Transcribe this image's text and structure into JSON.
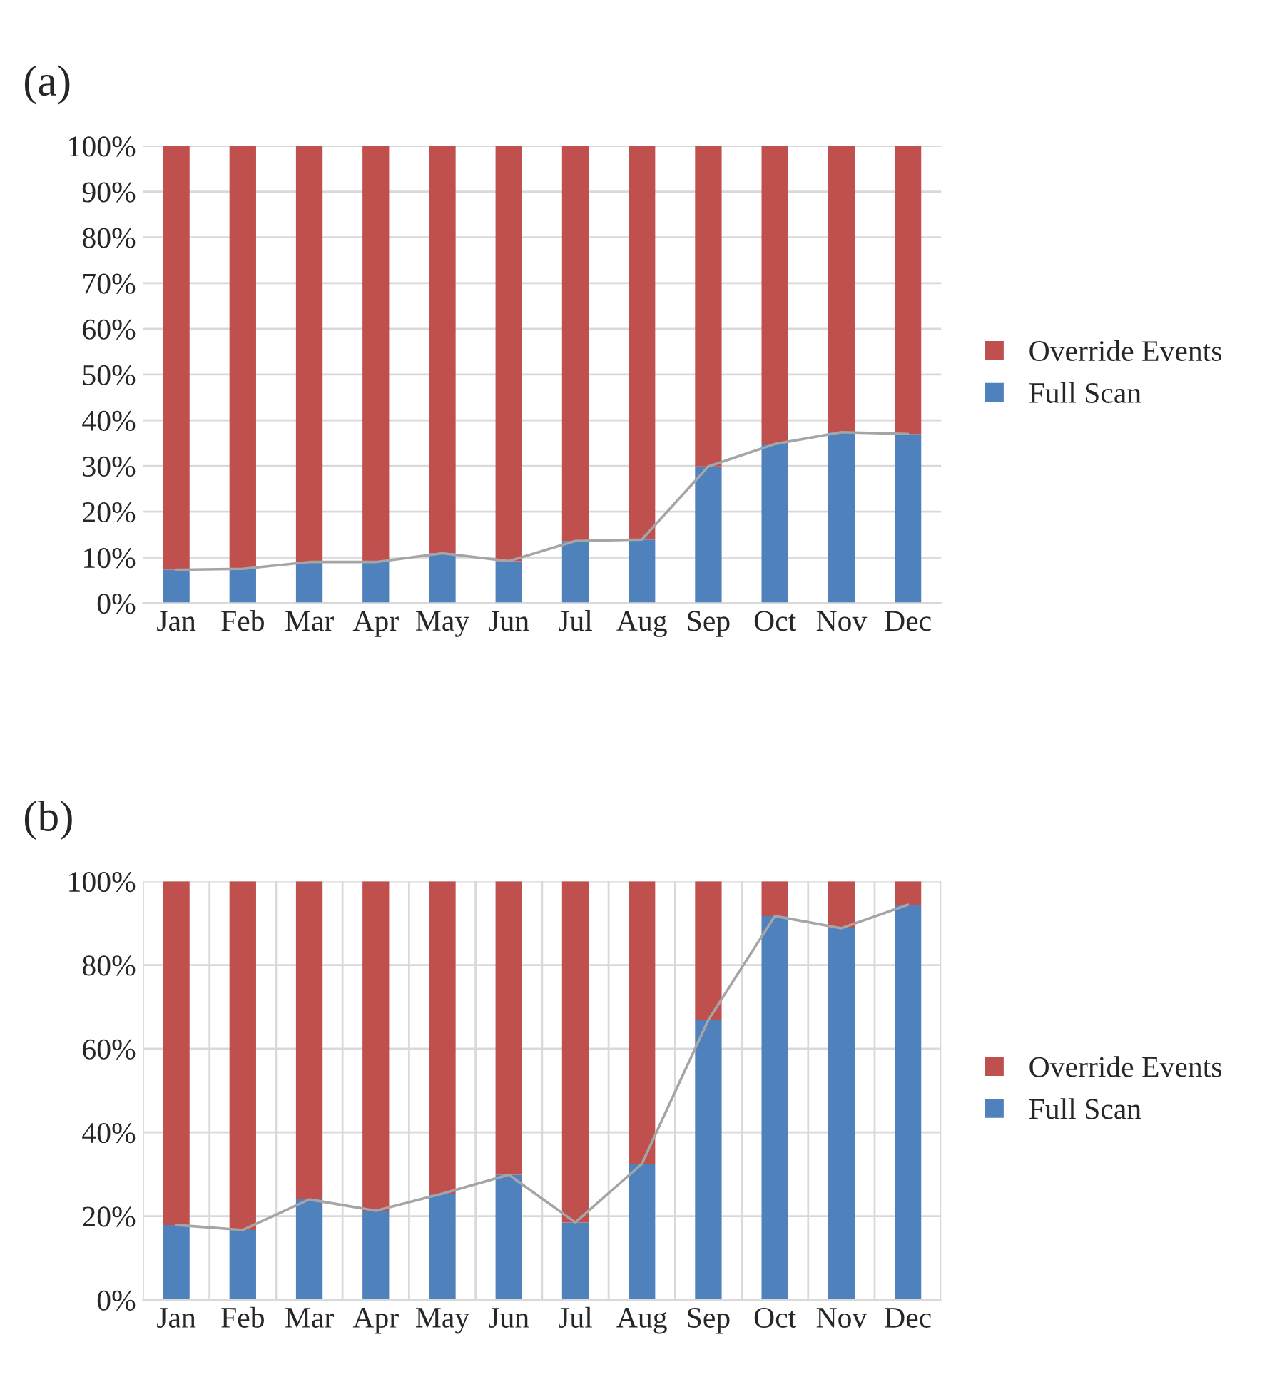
{
  "chart_data": [
    {
      "type": "bar",
      "title": "(a)",
      "stacked": true,
      "categories": [
        "Jan",
        "Feb",
        "Mar",
        "Apr",
        "May",
        "Jun",
        "Jul",
        "Aug",
        "Sep",
        "Oct",
        "Nov",
        "Dec"
      ],
      "series": [
        {
          "name": "Full Scan",
          "color": "#4f81bd",
          "values": [
            7.3,
            7.5,
            9.0,
            9.0,
            10.9,
            9.2,
            13.6,
            13.9,
            29.9,
            34.8,
            37.4,
            37.0
          ]
        },
        {
          "name": "Override Events",
          "color": "#c0504d",
          "values": [
            92.7,
            92.5,
            91.0,
            91.0,
            89.1,
            90.8,
            86.4,
            86.1,
            70.1,
            65.2,
            62.6,
            63.0
          ]
        },
        {
          "type": "line",
          "color": "#a5a5a5",
          "values": [
            7.3,
            7.5,
            9.0,
            9.0,
            10.9,
            9.2,
            13.6,
            13.9,
            29.9,
            34.8,
            37.4,
            37.0
          ]
        }
      ],
      "ylim": [
        0,
        100
      ],
      "yticks": [
        {
          "value": 0,
          "label": "0%"
        },
        {
          "value": 10,
          "label": "10%"
        },
        {
          "value": 20,
          "label": "20%"
        },
        {
          "value": 30,
          "label": "30%"
        },
        {
          "value": 40,
          "label": "40%"
        },
        {
          "value": 50,
          "label": "50%"
        },
        {
          "value": 60,
          "label": "60%"
        },
        {
          "value": 70,
          "label": "70%"
        },
        {
          "value": 80,
          "label": "80%"
        },
        {
          "value": 90,
          "label": "90%"
        },
        {
          "value": 100,
          "label": "100%"
        }
      ],
      "grid": "y",
      "legend": "right"
    },
    {
      "type": "bar",
      "title": "(b)",
      "stacked": true,
      "categories": [
        "Jan",
        "Feb",
        "Mar",
        "Apr",
        "May",
        "Jun",
        "Jul",
        "Aug",
        "Sep",
        "Oct",
        "Nov",
        "Dec"
      ],
      "series": [
        {
          "name": "Full Scan",
          "color": "#4f81bd",
          "values": [
            17.9,
            16.7,
            24.0,
            21.3,
            25.4,
            29.9,
            18.5,
            32.5,
            66.9,
            91.7,
            88.8,
            94.4
          ]
        },
        {
          "name": "Override Events",
          "color": "#c0504d",
          "values": [
            82.1,
            83.3,
            76.0,
            78.7,
            74.6,
            70.1,
            81.5,
            67.5,
            33.1,
            8.3,
            11.2,
            5.6
          ]
        },
        {
          "type": "line",
          "color": "#a5a5a5",
          "values": [
            17.9,
            16.7,
            24.0,
            21.3,
            25.4,
            29.9,
            18.5,
            32.5,
            66.9,
            91.7,
            88.8,
            94.4
          ]
        }
      ],
      "ylim": [
        0,
        100
      ],
      "yticks": [
        {
          "value": 0,
          "label": "0%"
        },
        {
          "value": 20,
          "label": "20%"
        },
        {
          "value": 40,
          "label": "40%"
        },
        {
          "value": 60,
          "label": "60%"
        },
        {
          "value": 80,
          "label": "80%"
        },
        {
          "value": 100,
          "label": "100%"
        }
      ],
      "grid": true,
      "legend": "right"
    }
  ]
}
